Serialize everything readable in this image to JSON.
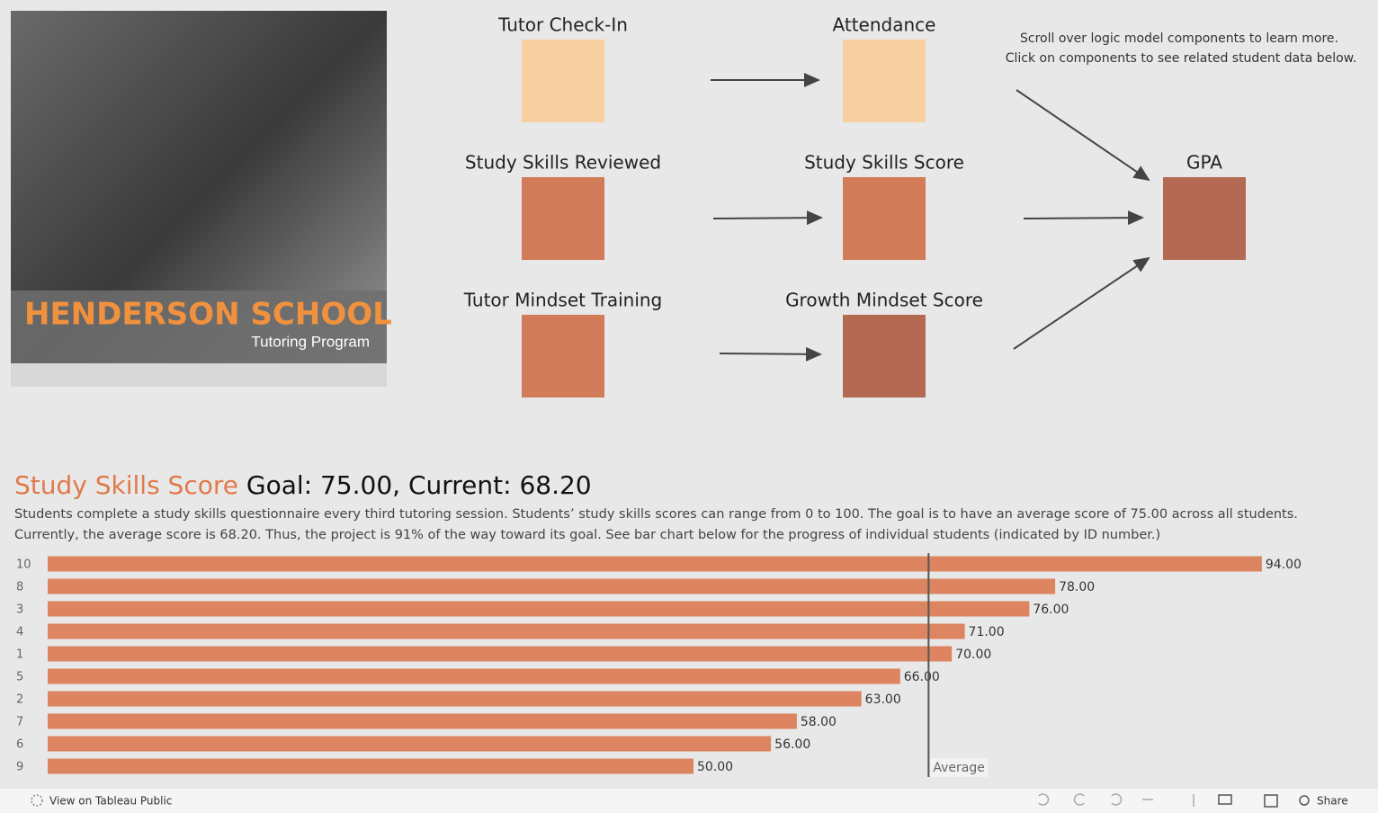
{
  "header": {
    "school": "HENDERSON SCHOOL",
    "program": "Tutoring Program"
  },
  "logic_model": {
    "instructions": [
      "Scroll over logic model components to learn more.",
      "Click on components to see related student data below."
    ],
    "nodes": [
      {
        "label": "Tutor Check-In",
        "color": "#f8cfa0"
      },
      {
        "label": "Attendance",
        "color": "#f8cfa0"
      },
      {
        "label": "Study Skills Reviewed",
        "color": "#d27b58"
      },
      {
        "label": "Study Skills Score",
        "color": "#d27b58"
      },
      {
        "label": "Tutor Mindset Training",
        "color": "#d27b58"
      },
      {
        "label": "Growth Mindset Score",
        "color": "#b46a52"
      },
      {
        "label": "GPA",
        "color": "#b46a52"
      }
    ]
  },
  "summary": {
    "metric": "Study Skills Score",
    "status": "Goal: 75.00, Current: 68.20",
    "description": [
      "Students complete a study skills questionnaire every third tutoring session. Students’ study skills scores can range from 0 to 100. The goal is to have an average score of 75.00 across all students.",
      "Currently, the average score is 68.20. Thus, the project is 91% of the way toward its goal. See bar chart below for the progress of individual students (indicated by ID number.)"
    ]
  },
  "chart_data": {
    "type": "bar",
    "orientation": "horizontal",
    "categories": [
      "10",
      "8",
      "3",
      "4",
      "1",
      "5",
      "2",
      "7",
      "6",
      "9"
    ],
    "values": [
      94,
      78,
      76,
      71,
      70,
      66,
      63,
      58,
      56,
      50
    ],
    "value_labels": [
      "94.00",
      "78.00",
      "76.00",
      "71.00",
      "70.00",
      "66.00",
      "63.00",
      "58.00",
      "56.00",
      "50.00"
    ],
    "color": "#dd8460",
    "xlim": [
      0,
      100
    ],
    "reference_line": {
      "label": "Average",
      "value": 68.2
    }
  },
  "toolbar": {
    "view": "View on Tableau Public",
    "share": "Share"
  }
}
